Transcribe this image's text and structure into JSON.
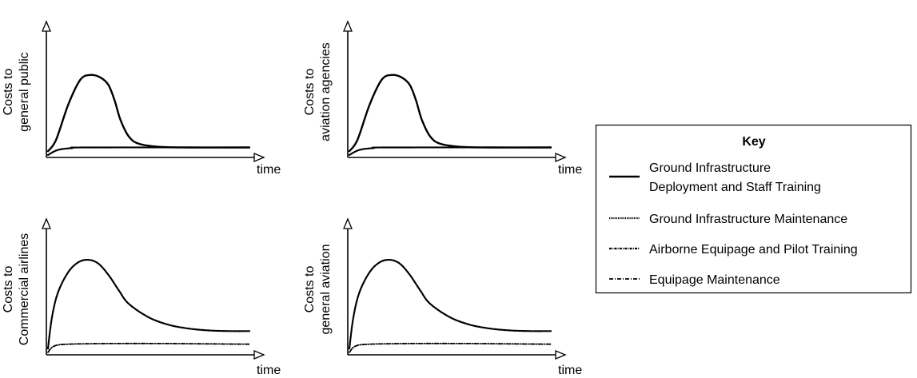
{
  "chart_data": [
    {
      "type": "line",
      "ylabel_lines": [
        "Costs to",
        "general public"
      ],
      "xlabel": "time",
      "series": [
        {
          "key": "deploy",
          "values": [
            [
              0,
              0.05
            ],
            [
              0.4,
              0.14
            ],
            [
              1.0,
              0.42
            ],
            [
              1.6,
              0.62
            ],
            [
              2.1,
              0.66
            ],
            [
              2.6,
              0.64
            ],
            [
              3.0,
              0.58
            ],
            [
              3.3,
              0.46
            ],
            [
              3.6,
              0.3
            ],
            [
              4.0,
              0.17
            ],
            [
              4.5,
              0.11
            ],
            [
              5.5,
              0.085
            ],
            [
              7,
              0.08
            ],
            [
              10,
              0.08
            ]
          ]
        },
        {
          "key": "maint",
          "values": [
            [
              0,
              0.02
            ],
            [
              0.5,
              0.06
            ],
            [
              1.2,
              0.075
            ],
            [
              2.0,
              0.08
            ],
            [
              10,
              0.08
            ]
          ]
        }
      ]
    },
    {
      "type": "line",
      "ylabel_lines": [
        "Costs to",
        "aviation agencies"
      ],
      "xlabel": "time",
      "series": [
        {
          "key": "deploy",
          "values": [
            [
              0,
              0.05
            ],
            [
              0.4,
              0.14
            ],
            [
              1.0,
              0.42
            ],
            [
              1.6,
              0.62
            ],
            [
              2.1,
              0.66
            ],
            [
              2.6,
              0.64
            ],
            [
              3.0,
              0.58
            ],
            [
              3.3,
              0.46
            ],
            [
              3.6,
              0.3
            ],
            [
              4.0,
              0.17
            ],
            [
              4.5,
              0.11
            ],
            [
              5.5,
              0.085
            ],
            [
              7,
              0.08
            ],
            [
              10,
              0.08
            ]
          ]
        },
        {
          "key": "maint",
          "values": [
            [
              0,
              0.02
            ],
            [
              0.5,
              0.06
            ],
            [
              1.2,
              0.075
            ],
            [
              2.0,
              0.08
            ],
            [
              10,
              0.08
            ]
          ]
        }
      ]
    },
    {
      "type": "line",
      "ylabel_lines": [
        "Costs to",
        "Commercial airlines"
      ],
      "xlabel": "time",
      "series": [
        {
          "key": "airborne",
          "values": [
            [
              0,
              0.05
            ],
            [
              0.2,
              0.3
            ],
            [
              0.5,
              0.5
            ],
            [
              1.0,
              0.66
            ],
            [
              1.5,
              0.74
            ],
            [
              2.0,
              0.76
            ],
            [
              2.5,
              0.73
            ],
            [
              3.0,
              0.64
            ],
            [
              3.5,
              0.52
            ],
            [
              4.0,
              0.41
            ],
            [
              5.0,
              0.3
            ],
            [
              6.0,
              0.24
            ],
            [
              7.0,
              0.21
            ],
            [
              8.0,
              0.195
            ],
            [
              9.0,
              0.19
            ],
            [
              10,
              0.19
            ]
          ]
        },
        {
          "key": "equip",
          "values": [
            [
              0,
              0.02
            ],
            [
              0.3,
              0.07
            ],
            [
              1.0,
              0.085
            ],
            [
              3.0,
              0.09
            ],
            [
              6.0,
              0.09
            ],
            [
              10,
              0.085
            ]
          ]
        }
      ]
    },
    {
      "type": "line",
      "ylabel_lines": [
        "Costs to",
        "general aviation"
      ],
      "xlabel": "time",
      "series": [
        {
          "key": "airborne",
          "values": [
            [
              0,
              0.05
            ],
            [
              0.2,
              0.3
            ],
            [
              0.5,
              0.5
            ],
            [
              1.0,
              0.66
            ],
            [
              1.5,
              0.74
            ],
            [
              2.0,
              0.76
            ],
            [
              2.5,
              0.73
            ],
            [
              3.0,
              0.64
            ],
            [
              3.5,
              0.52
            ],
            [
              4.0,
              0.41
            ],
            [
              5.0,
              0.3
            ],
            [
              6.0,
              0.24
            ],
            [
              7.0,
              0.21
            ],
            [
              8.0,
              0.195
            ],
            [
              9.0,
              0.19
            ],
            [
              10,
              0.19
            ]
          ]
        },
        {
          "key": "equip",
          "values": [
            [
              0,
              0.02
            ],
            [
              0.3,
              0.07
            ],
            [
              1.0,
              0.085
            ],
            [
              3.0,
              0.09
            ],
            [
              6.0,
              0.09
            ],
            [
              10,
              0.085
            ]
          ]
        }
      ]
    }
  ],
  "legend": {
    "title": "Key",
    "items": [
      {
        "key": "deploy",
        "lines": [
          "Ground Infrastructure",
          "Deployment and Staff Training"
        ],
        "dash": "solid"
      },
      {
        "key": "maint",
        "lines": [
          "Ground Infrastructure Maintenance"
        ],
        "dash": "dotted"
      },
      {
        "key": "airborne",
        "lines": [
          "Airborne Equipage and Pilot Training"
        ],
        "dash": "dashdot"
      },
      {
        "key": "equip",
        "lines": [
          "Equipage Maintenance"
        ],
        "dash": "longdash"
      }
    ]
  }
}
